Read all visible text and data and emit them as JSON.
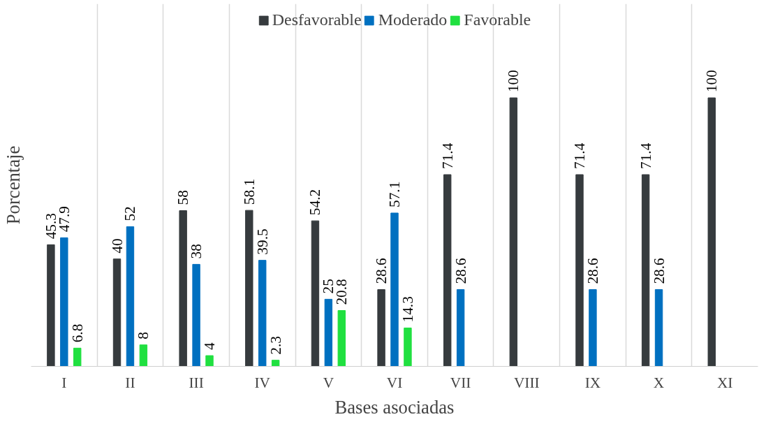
{
  "chart_data": {
    "type": "bar",
    "xlabel": "Bases asociadas",
    "ylabel": "Porcentaje",
    "categories": [
      "I",
      "II",
      "III",
      "IV",
      "V",
      "VI",
      "VII",
      "VIII",
      "IX",
      "X",
      "XI"
    ],
    "series": [
      {
        "name": "Desfavorable",
        "color": "#363b3e",
        "values": [
          45.3,
          40,
          58,
          58.1,
          54.2,
          28.6,
          71.4,
          100,
          71.4,
          71.4,
          100
        ]
      },
      {
        "name": "Moderado",
        "color": "#0070c0",
        "values": [
          47.9,
          52,
          38,
          39.5,
          25,
          57.1,
          28.6,
          null,
          28.6,
          28.6,
          null
        ]
      },
      {
        "name": "Favorable",
        "color": "#20e040",
        "values": [
          6.8,
          8,
          4,
          2.3,
          20.8,
          14.3,
          null,
          null,
          null,
          null,
          null
        ]
      }
    ],
    "data_labels": true,
    "grid": "x",
    "legend": "top"
  }
}
